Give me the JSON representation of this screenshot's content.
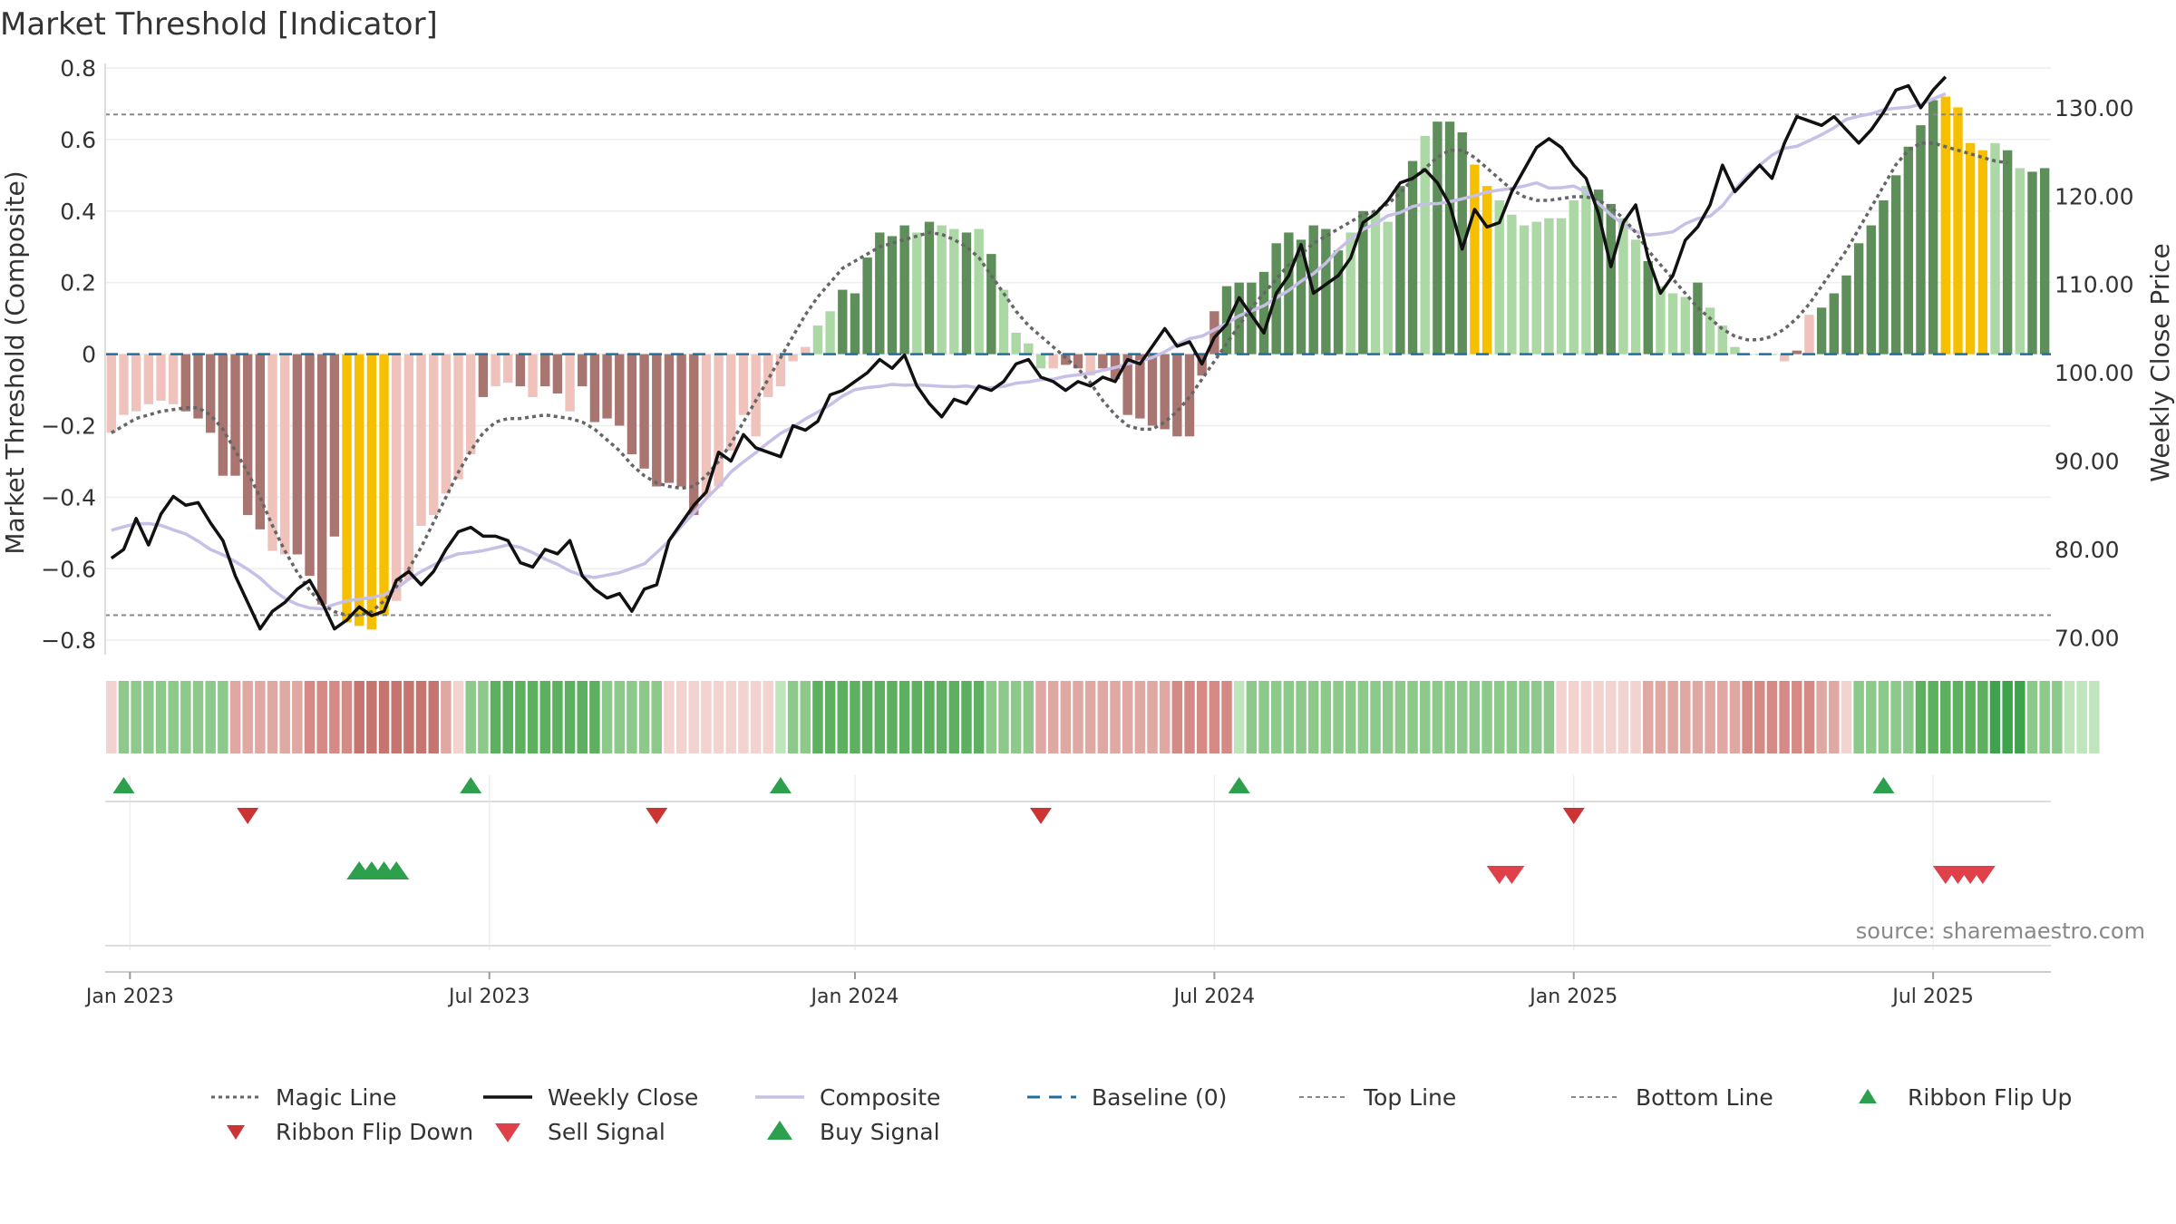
{
  "page": {
    "title": "Market Threshold [Indicator]",
    "source": "source: sharemaestro.com"
  },
  "colors": {
    "pos_dark": "#5e8e5a",
    "pos_light": "#acd8a6",
    "neg_dark": "#a87570",
    "neg_light": "#efc2bc",
    "extreme": "#f6c000",
    "weekly_close": "#111111",
    "composite": "#c8bfe6",
    "magic": "#666666",
    "ref_line": "#888888",
    "baseline": "#1f6f9f",
    "flip_up": "#2ca04c",
    "flip_down": "#cc3333",
    "sell": "#e0404a",
    "buy": "#2ca04c"
  },
  "chart_data": {
    "type": "bar",
    "title": "Market Threshold [Indicator]",
    "ylabel_left": "Market Threshold (Composite)",
    "ylabel_right": "Weekly Close Price",
    "ylim_left": [
      -0.83,
      0.8
    ],
    "ylim_right": [
      68.5,
      134.5
    ],
    "left_ticks": [
      "0.8",
      "0.6",
      "0.4",
      "0.2",
      "0",
      "−0.2",
      "−0.4",
      "−0.6",
      "−0.8"
    ],
    "left_tick_values": [
      0.8,
      0.6,
      0.4,
      0.2,
      0,
      -0.2,
      -0.4,
      -0.6,
      -0.8
    ],
    "right_ticks": [
      "130.00",
      "120.00",
      "110.00",
      "100.00",
      "90.00",
      "80.00",
      "70.00"
    ],
    "right_tick_values": [
      130,
      120,
      110,
      100,
      90,
      80,
      70
    ],
    "x_ticks": [
      "Jan 2023",
      "Jul 2023",
      "Jan 2024",
      "Jul 2024",
      "Jan 2025",
      "Jul 2025"
    ],
    "x_tick_week_index": [
      2,
      31,
      60.5,
      89.5,
      118.5,
      147.5
    ],
    "top_line": 0.67,
    "bottom_line": -0.73,
    "baseline": 0,
    "composite": [
      -0.22,
      -0.17,
      -0.16,
      -0.14,
      -0.13,
      -0.14,
      -0.16,
      -0.18,
      -0.22,
      -0.34,
      -0.34,
      -0.45,
      -0.49,
      -0.55,
      -0.56,
      -0.56,
      -0.62,
      -0.7,
      -0.51,
      -0.75,
      -0.76,
      -0.77,
      -0.73,
      -0.69,
      -0.63,
      -0.48,
      -0.45,
      -0.39,
      -0.35,
      -0.28,
      -0.12,
      -0.09,
      -0.08,
      -0.09,
      -0.12,
      -0.09,
      -0.11,
      -0.16,
      -0.09,
      -0.19,
      -0.18,
      -0.2,
      -0.28,
      -0.32,
      -0.37,
      -0.36,
      -0.37,
      -0.45,
      -0.4,
      -0.37,
      -0.27,
      -0.17,
      -0.23,
      -0.12,
      -0.09,
      -0.02,
      0.02,
      0.08,
      0.12,
      0.18,
      0.17,
      0.27,
      0.34,
      0.33,
      0.36,
      0.34,
      0.37,
      0.36,
      0.35,
      0.34,
      0.35,
      0.28,
      0.18,
      0.06,
      0.03,
      -0.04,
      -0.04,
      -0.03,
      -0.04,
      -0.06,
      -0.04,
      -0.07,
      -0.17,
      -0.18,
      -0.2,
      -0.21,
      -0.23,
      -0.23,
      -0.06,
      0.12,
      0.19,
      0.2,
      0.2,
      0.23,
      0.31,
      0.34,
      0.32,
      0.36,
      0.35,
      0.29,
      0.34,
      0.4,
      0.4,
      0.37,
      0.47,
      0.54,
      0.61,
      0.65,
      0.65,
      0.62,
      0.53,
      0.47,
      0.43,
      0.39,
      0.36,
      0.37,
      0.38,
      0.38,
      0.43,
      0.47,
      0.46,
      0.42,
      0.38,
      0.32,
      0.26,
      0.19,
      0.17,
      0.16,
      0.2,
      0.13,
      0.08,
      0.02,
      0.0,
      0.0,
      0.0,
      -0.02,
      0.01,
      0.11,
      0.13,
      0.17,
      0.22,
      0.31,
      0.36,
      0.43,
      0.5,
      0.58,
      0.64,
      0.71,
      0.72,
      0.69,
      0.59,
      0.57,
      0.59,
      0.57,
      0.52,
      0.51,
      0.52
    ],
    "bar_class": [
      "nl",
      "nl",
      "nl",
      "nl",
      "nl",
      "nl",
      "nd",
      "nd",
      "nd",
      "nd",
      "nd",
      "nd",
      "nd",
      "nl",
      "nl",
      "nd",
      "nd",
      "nd",
      "nd",
      "e",
      "e",
      "e",
      "e",
      "nl",
      "nl",
      "nl",
      "nl",
      "nl",
      "nl",
      "nl",
      "nd",
      "nl",
      "nl",
      "nd",
      "nl",
      "nd",
      "nd",
      "nl",
      "nd",
      "nd",
      "nd",
      "nd",
      "nd",
      "nd",
      "nd",
      "nd",
      "nd",
      "nd",
      "nl",
      "nl",
      "nl",
      "nl",
      "nl",
      "nl",
      "nl",
      "nl",
      "nl",
      "pl",
      "pl",
      "pd",
      "pd",
      "pd",
      "pd",
      "pd",
      "pd",
      "pl",
      "pd",
      "pl",
      "pl",
      "pd",
      "pl",
      "pd",
      "pl",
      "pl",
      "pl",
      "pl",
      "nl",
      "nd",
      "nd",
      "nl",
      "nd",
      "nd",
      "nd",
      "nd",
      "nd",
      "nd",
      "nd",
      "nd",
      "nd",
      "nd",
      "pd",
      "pd",
      "pd",
      "pd",
      "pd",
      "pd",
      "pd",
      "pd",
      "pd",
      "pd",
      "pl",
      "pd",
      "pl",
      "pl",
      "pd",
      "pd",
      "pl",
      "pd",
      "pd",
      "pd",
      "e",
      "e",
      "pl",
      "pl",
      "pl",
      "pl",
      "pl",
      "pl",
      "pl",
      "pl",
      "pd",
      "pd",
      "pl",
      "pl",
      "pd",
      "pl",
      "pl",
      "pl",
      "pd",
      "pl",
      "pl",
      "pl",
      "pl",
      "pl",
      "pl",
      "nl",
      "nd",
      "nl",
      "pd",
      "pd",
      "pd",
      "pd",
      "pd",
      "pd",
      "pd",
      "pd",
      "pd",
      "pd",
      "e",
      "e",
      "e",
      "e",
      "pl",
      "pd",
      "pl",
      "pd",
      "pd",
      "pl",
      "pl",
      "pd"
    ],
    "magic_line": [
      -0.22,
      -0.2,
      -0.18,
      -0.17,
      -0.16,
      -0.155,
      -0.15,
      -0.15,
      -0.17,
      -0.21,
      -0.27,
      -0.33,
      -0.4,
      -0.48,
      -0.55,
      -0.61,
      -0.66,
      -0.7,
      -0.72,
      -0.73,
      -0.73,
      -0.72,
      -0.69,
      -0.65,
      -0.6,
      -0.54,
      -0.47,
      -0.4,
      -0.33,
      -0.27,
      -0.22,
      -0.19,
      -0.18,
      -0.18,
      -0.175,
      -0.17,
      -0.175,
      -0.18,
      -0.19,
      -0.21,
      -0.24,
      -0.27,
      -0.31,
      -0.34,
      -0.36,
      -0.37,
      -0.375,
      -0.37,
      -0.34,
      -0.3,
      -0.25,
      -0.19,
      -0.13,
      -0.07,
      -0.01,
      0.05,
      0.11,
      0.16,
      0.2,
      0.24,
      0.26,
      0.28,
      0.3,
      0.31,
      0.32,
      0.33,
      0.34,
      0.335,
      0.32,
      0.3,
      0.27,
      0.22,
      0.17,
      0.12,
      0.08,
      0.05,
      0.02,
      -0.01,
      -0.04,
      -0.08,
      -0.13,
      -0.17,
      -0.2,
      -0.21,
      -0.21,
      -0.19,
      -0.16,
      -0.12,
      -0.07,
      -0.02,
      0.03,
      0.08,
      0.13,
      0.17,
      0.21,
      0.25,
      0.28,
      0.31,
      0.33,
      0.35,
      0.37,
      0.39,
      0.4,
      0.42,
      0.45,
      0.49,
      0.52,
      0.55,
      0.57,
      0.57,
      0.55,
      0.52,
      0.49,
      0.46,
      0.44,
      0.43,
      0.43,
      0.435,
      0.44,
      0.44,
      0.43,
      0.41,
      0.38,
      0.34,
      0.29,
      0.25,
      0.21,
      0.17,
      0.13,
      0.1,
      0.07,
      0.05,
      0.04,
      0.04,
      0.05,
      0.07,
      0.1,
      0.14,
      0.19,
      0.24,
      0.29,
      0.35,
      0.41,
      0.47,
      0.53,
      0.57,
      0.59,
      0.59,
      0.58,
      0.57,
      0.56,
      0.55,
      0.54,
      0.535
    ],
    "weekly_close": [
      79.0,
      80.0,
      83.5,
      80.5,
      84.0,
      86.0,
      85.0,
      85.3,
      83.0,
      81.0,
      77.0,
      74.0,
      71.0,
      73.0,
      74.0,
      75.5,
      76.5,
      74.0,
      71.0,
      72.0,
      73.5,
      72.5,
      73.0,
      76.5,
      77.5,
      76.0,
      77.5,
      80.0,
      82.0,
      82.5,
      81.5,
      81.5,
      81.0,
      78.5,
      78.0,
      80.0,
      79.5,
      81.0,
      77.0,
      75.5,
      74.5,
      75.0,
      73.0,
      75.5,
      76.0,
      81.0,
      83.0,
      85.0,
      86.5,
      91.0,
      90.0,
      93.0,
      91.5,
      91.0,
      90.5,
      94.0,
      93.5,
      94.5,
      97.5,
      98.0,
      99.0,
      100.0,
      101.5,
      100.5,
      102.0,
      98.5,
      96.5,
      95.0,
      97.0,
      96.5,
      98.5,
      98.0,
      99.0,
      101.0,
      101.5,
      99.5,
      99.0,
      98.0,
      99.0,
      98.5,
      99.5,
      99.0,
      101.5,
      101.0,
      103.0,
      105.0,
      103.0,
      103.5,
      101.0,
      104.0,
      105.5,
      108.5,
      106.5,
      104.5,
      109.0,
      111.0,
      114.5,
      109.0,
      110.0,
      111.0,
      113.0,
      117.0,
      118.0,
      119.5,
      121.5,
      122.0,
      123.0,
      121.5,
      119.0,
      114.0,
      118.5,
      116.5,
      117.0,
      120.5,
      123.0,
      125.5,
      126.5,
      125.5,
      123.5,
      122.0,
      118.0,
      112.0,
      117.0,
      119.0,
      113.0,
      109.0,
      111.0,
      115.0,
      116.5,
      119.0,
      123.5,
      120.5,
      122.0,
      123.5,
      122.0,
      126.0,
      129.0,
      128.5,
      128.0,
      129.0,
      127.5,
      126.0,
      127.5,
      129.5,
      132.0,
      132.5,
      130.0,
      132.0,
      133.5
    ],
    "ribbon_class": [
      "r1",
      "g2",
      "g2",
      "g2",
      "g2",
      "g2",
      "g2",
      "g2",
      "g2",
      "g2",
      "r2",
      "r2",
      "r2",
      "r2",
      "r2",
      "r2",
      "r3",
      "r3",
      "r3",
      "r3",
      "r4",
      "r4",
      "r4",
      "r4",
      "r4",
      "r4",
      "r4",
      "r2",
      "r1",
      "g2",
      "g2",
      "g3",
      "g3",
      "g3",
      "g3",
      "g3",
      "g3",
      "g3",
      "g3",
      "g3",
      "g2",
      "g2",
      "g2",
      "g2",
      "g2",
      "r1",
      "r1",
      "r1",
      "r1",
      "r1",
      "r1",
      "r1",
      "r1",
      "r1",
      "g1",
      "g2",
      "g2",
      "g3",
      "g3",
      "g3",
      "g3",
      "g3",
      "g3",
      "g3",
      "g3",
      "g3",
      "g3",
      "g3",
      "g3",
      "g3",
      "g3",
      "g2",
      "g2",
      "g2",
      "g2",
      "r2",
      "r2",
      "r2",
      "r2",
      "r2",
      "r2",
      "r2",
      "r2",
      "r2",
      "r2",
      "r2",
      "r3",
      "r3",
      "r3",
      "r3",
      "r3",
      "g1",
      "g2",
      "g2",
      "g2",
      "g2",
      "g2",
      "g2",
      "g2",
      "g2",
      "g2",
      "g2",
      "g2",
      "g2",
      "g2",
      "g2",
      "g2",
      "g2",
      "g2",
      "g2",
      "g2",
      "g2",
      "g2",
      "g2",
      "g2",
      "g2",
      "g2",
      "r1",
      "r1",
      "r1",
      "r1",
      "r1",
      "r1",
      "r1",
      "r2",
      "r2",
      "r2",
      "r2",
      "r2",
      "r2",
      "r2",
      "r2",
      "r3",
      "r3",
      "r3",
      "r3",
      "r3",
      "r3",
      "r2",
      "r2",
      "r1",
      "g2",
      "g2",
      "g2",
      "g2",
      "g2",
      "g3",
      "g3",
      "g3",
      "g3",
      "g3",
      "g3",
      "g4",
      "g4",
      "g4",
      "g2",
      "g2",
      "g2",
      "g1",
      "g1",
      "g1"
    ],
    "ribbon_flip_up": [
      1,
      29,
      54,
      91,
      143
    ],
    "ribbon_flip_down": [
      11,
      44,
      75,
      118
    ],
    "buy_signal": [
      20,
      21,
      22,
      23
    ],
    "sell_signal": [
      112,
      113,
      148,
      149,
      150,
      151
    ],
    "legend": [
      "Magic Line",
      "Weekly Close",
      "Composite",
      "Baseline (0)",
      "Top Line",
      "Bottom Line",
      "Ribbon Flip Up",
      "Ribbon Flip Down",
      "Sell Signal",
      "Buy Signal"
    ]
  }
}
